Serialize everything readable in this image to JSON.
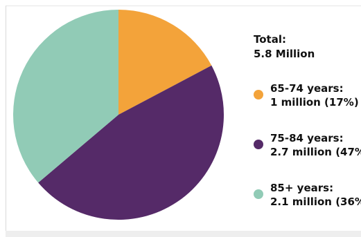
{
  "chart_data": {
    "type": "pie",
    "total_label": "Total:",
    "total_value": "5.8 Million",
    "slices": [
      {
        "name": "65-74 years:",
        "value": 1.0,
        "percent": 17,
        "label": "1 million (17%)",
        "color": "#F3A33A"
      },
      {
        "name": "75-84 years:",
        "value": 2.7,
        "percent": 47,
        "label": "2.7 million (47%",
        "color": "#552A68"
      },
      {
        "name": "85+ years:",
        "value": 2.1,
        "percent": 36,
        "label": "2.1 million (36%",
        "color": "#91CBB6"
      }
    ]
  }
}
